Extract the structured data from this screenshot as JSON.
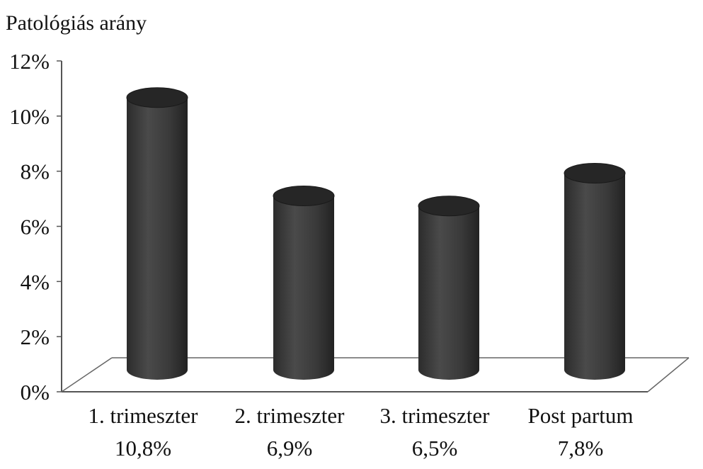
{
  "chart_data": {
    "type": "bar",
    "ylabel": "Patológiás arány",
    "categories": [
      "1. trimeszter",
      "2. trimeszter",
      "3. trimeszter",
      "Post partum"
    ],
    "values": [
      10.8,
      6.9,
      6.5,
      7.8
    ],
    "value_labels": [
      "10,8%",
      "6,9%",
      "6,5%",
      "7,8%"
    ],
    "yticks": [
      "0%",
      "2%",
      "4%",
      "6%",
      "8%",
      "10%",
      "12%"
    ],
    "ylim": [
      0,
      12
    ],
    "grid": false,
    "legend": "none",
    "bar_style": "3d-cylinder",
    "colors": {
      "bar": "#3a3a3a",
      "bar_top": "#262626",
      "axis": "#555555",
      "floor": "#666666"
    }
  }
}
